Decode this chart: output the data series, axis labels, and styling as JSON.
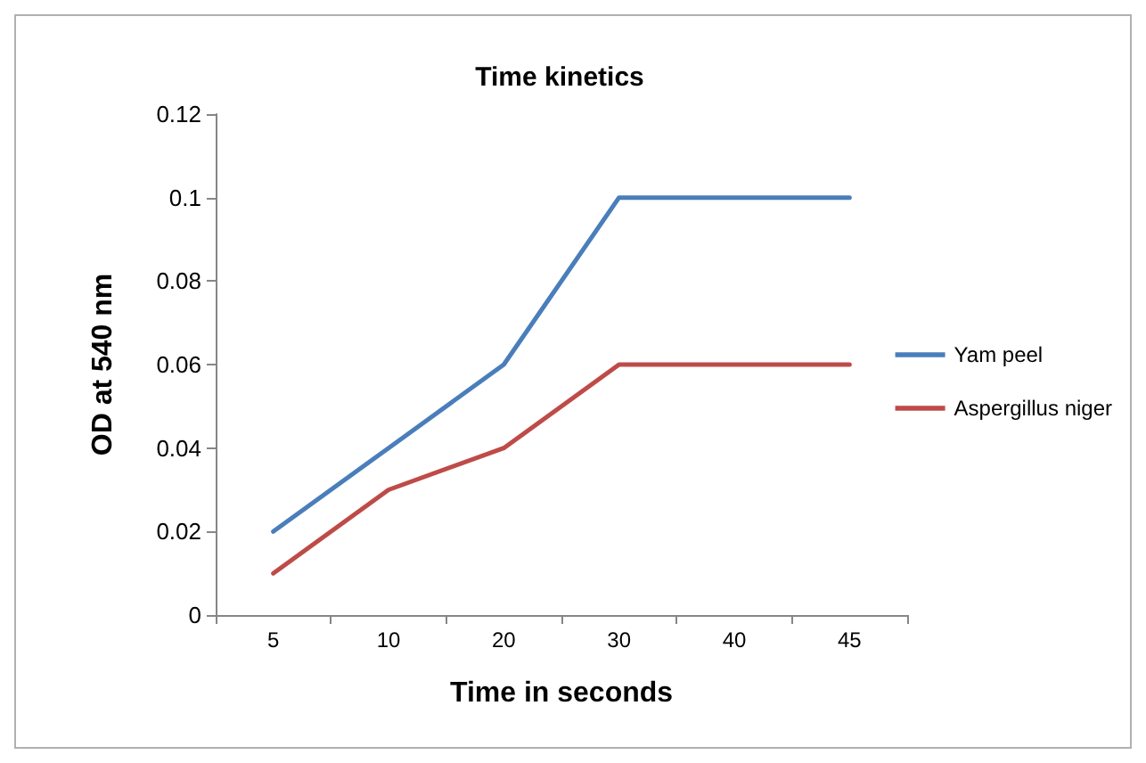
{
  "chart_data": {
    "type": "line",
    "title": "Time kinetics",
    "xlabel": "Time in seconds",
    "ylabel": "OD at 540 nm",
    "categories": [
      "5",
      "10",
      "20",
      "30",
      "40",
      "45"
    ],
    "series": [
      {
        "name": "Yam peel",
        "color": "#4a7ebb",
        "values": [
          0.02,
          0.04,
          0.06,
          0.1,
          0.1,
          0.1
        ]
      },
      {
        "name": "Aspergillus niger",
        "color": "#be4b48",
        "values": [
          0.01,
          0.03,
          0.04,
          0.06,
          0.06,
          0.06
        ]
      }
    ],
    "ylim": [
      0,
      0.12
    ],
    "yticks": [
      0,
      0.02,
      0.04,
      0.06,
      0.08,
      0.1,
      0.12
    ],
    "grid": false,
    "legend": "right",
    "marker": "none",
    "line_style": "solid"
  }
}
